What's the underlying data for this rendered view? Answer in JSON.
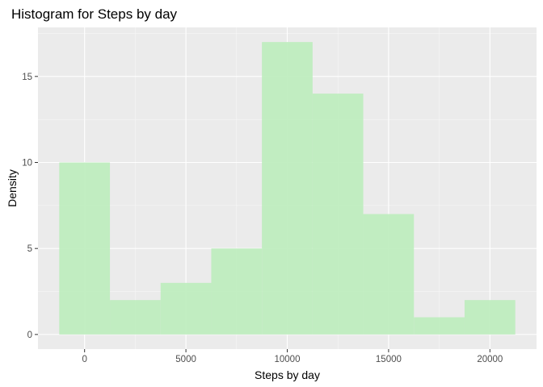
{
  "chart_data": {
    "type": "bar",
    "title": "Histogram for Steps by day",
    "xlabel": "Steps by day",
    "ylabel": "Density",
    "bin_width": 2500,
    "bins": [
      {
        "x_start": -1250,
        "x_end": 1250,
        "count": 10
      },
      {
        "x_start": 1250,
        "x_end": 3750,
        "count": 2
      },
      {
        "x_start": 3750,
        "x_end": 6250,
        "count": 3
      },
      {
        "x_start": 6250,
        "x_end": 8750,
        "count": 5
      },
      {
        "x_start": 8750,
        "x_end": 11250,
        "count": 17
      },
      {
        "x_start": 11250,
        "x_end": 13750,
        "count": 14
      },
      {
        "x_start": 13750,
        "x_end": 16250,
        "count": 7
      },
      {
        "x_start": 16250,
        "x_end": 18750,
        "count": 1
      },
      {
        "x_start": 18750,
        "x_end": 21250,
        "count": 2
      }
    ],
    "xlim": [
      -2300,
      22300
    ],
    "ylim": [
      -0.85,
      17.85
    ],
    "x_ticks": [
      0,
      5000,
      10000,
      15000,
      20000
    ],
    "x_tick_labels": [
      "0",
      "5000",
      "10000",
      "15000",
      "20000"
    ],
    "y_ticks": [
      0,
      5,
      10,
      15
    ],
    "y_tick_labels": [
      "0",
      "5",
      "10",
      "15"
    ],
    "grid": true,
    "colors": {
      "bar_fill": "#bdedbd",
      "panel_background": "#ebebeb",
      "grid_major": "#ffffff",
      "grid_minor": "#f7f7f7"
    }
  }
}
